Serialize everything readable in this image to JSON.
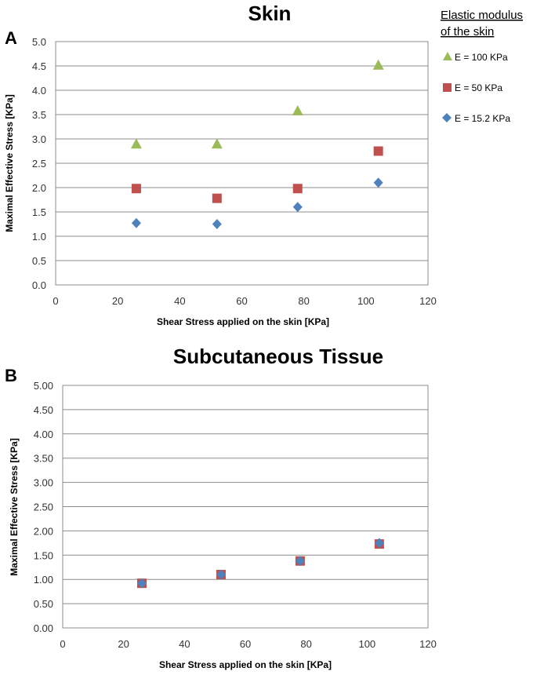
{
  "legend": {
    "title_line1": "Elastic modulus",
    "title_line2": "of the skin"
  },
  "colors": {
    "E100": "#9bbb59",
    "E50": "#c0504d",
    "E15": "#4f81bd",
    "grid": "#8c8c8c"
  },
  "chart_data": [
    {
      "type": "scatter",
      "panel_label": "A",
      "title": "Skin",
      "xlabel": "Shear Stress applied on the skin [KPa]",
      "ylabel": "Maximal Effective Stress [KPa]",
      "xlim": [
        0,
        120
      ],
      "ylim": [
        0,
        5
      ],
      "xticks": [
        0,
        20,
        40,
        60,
        80,
        100,
        120
      ],
      "yticks": [
        0,
        0.5,
        1,
        1.5,
        2,
        2.5,
        3,
        3.5,
        4,
        4.5,
        5
      ],
      "ytick_labels": [
        "0.0",
        "0.5",
        "1.0",
        "1.5",
        "2.0",
        "2.5",
        "3.0",
        "3.5",
        "4.0",
        "4.5",
        "5.0"
      ],
      "series": [
        {
          "name": "E = 100 KPa",
          "key": "E100",
          "marker": "triangle",
          "x": [
            26,
            52,
            78,
            104
          ],
          "y": [
            2.9,
            2.9,
            3.58,
            4.52
          ]
        },
        {
          "name": "E = 50 KPa",
          "key": "E50",
          "marker": "square",
          "x": [
            26,
            52,
            78,
            104
          ],
          "y": [
            1.98,
            1.78,
            1.98,
            2.75
          ]
        },
        {
          "name": "E = 15.2 KPa",
          "key": "E15",
          "marker": "diamond",
          "x": [
            26,
            52,
            78,
            104
          ],
          "y": [
            1.27,
            1.25,
            1.6,
            2.1
          ]
        }
      ]
    },
    {
      "type": "scatter",
      "panel_label": "B",
      "title": "Subcutaneous Tissue",
      "xlabel": "Shear Stress applied on the skin [KPa]",
      "ylabel": "Maximal Effective Stress [KPa]",
      "xlim": [
        0,
        120
      ],
      "ylim": [
        0,
        5
      ],
      "xticks": [
        0,
        20,
        40,
        60,
        80,
        100,
        120
      ],
      "yticks": [
        0,
        0.5,
        1,
        1.5,
        2,
        2.5,
        3,
        3.5,
        4,
        4.5,
        5
      ],
      "ytick_labels": [
        "0.00",
        "0.50",
        "1.00",
        "1.50",
        "2.00",
        "2.50",
        "3.00",
        "3.50",
        "4.00",
        "4.50",
        "5.00"
      ],
      "series": [
        {
          "name": "E = 50 KPa",
          "key": "E50",
          "marker": "square",
          "x": [
            26,
            52,
            78,
            104
          ],
          "y": [
            0.92,
            1.1,
            1.38,
            1.73
          ]
        },
        {
          "name": "E = 15.2 KPa",
          "key": "E15",
          "marker": "diamond",
          "x": [
            26,
            52,
            78,
            104
          ],
          "y": [
            0.92,
            1.1,
            1.38,
            1.75
          ]
        }
      ]
    }
  ]
}
